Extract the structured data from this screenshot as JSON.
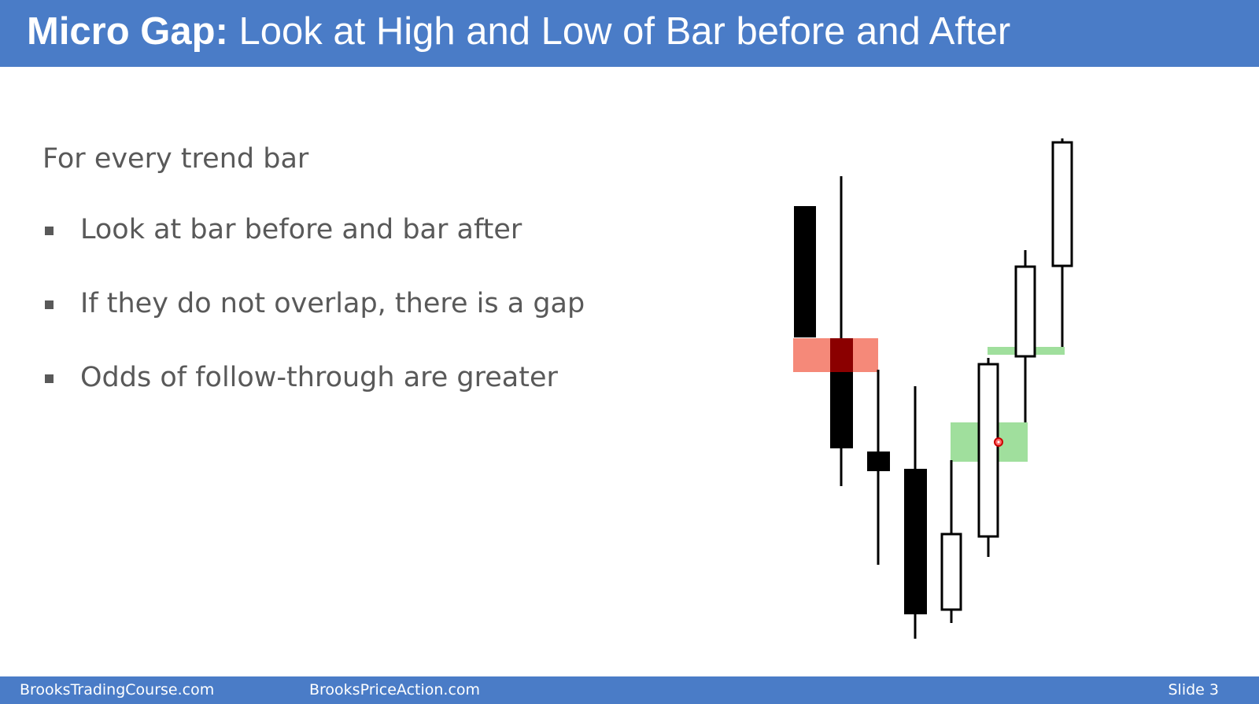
{
  "header": {
    "title_bold": "Micro Gap:",
    "title_rest": " Look at High and Low of Bar before and After"
  },
  "content": {
    "intro": "For every trend bar",
    "bullets": [
      "Look at bar before and bar after",
      "If they do not overlap, there is a gap",
      "Odds of follow-through are greater"
    ]
  },
  "footer": {
    "left": "BrooksTradingCourse.com",
    "middle": "BrooksPriceAction.com",
    "slide_label": "Slide  3"
  },
  "colors": {
    "header_bg": "#4a7cc7",
    "text": "#595959",
    "bear_gap_highlight": "#f47c6a",
    "bull_gap_highlight": "#8fd98c"
  }
}
